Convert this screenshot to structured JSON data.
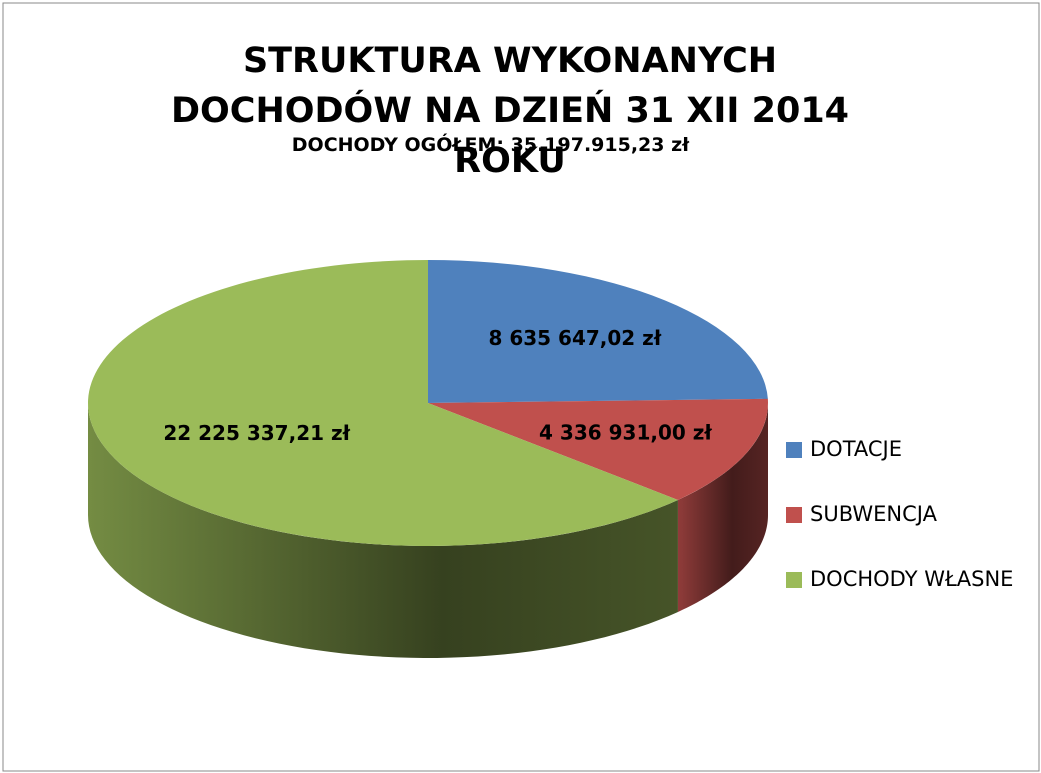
{
  "chart_data": {
    "type": "pie",
    "title": "STRUKTURA WYKONANYCH DOCHODÓW NA DZIEŃ 31 XII 2014 ROKU",
    "subtitle": "DOCHODY OGÓŁEM: 35.197.915,23 zł",
    "categories": [
      "DOTACJE",
      "SUBWENCJA",
      "DOCHODY WŁASNE"
    ],
    "values": [
      8635647.02,
      4336931.0,
      22225337.21
    ],
    "value_labels": [
      "8 635 647,02 zł",
      "4 336 931,00 zł",
      "22 225 337,21 zł"
    ],
    "colors": [
      "#4f81bd",
      "#c0504d",
      "#9bbb59"
    ],
    "legend": "right"
  }
}
